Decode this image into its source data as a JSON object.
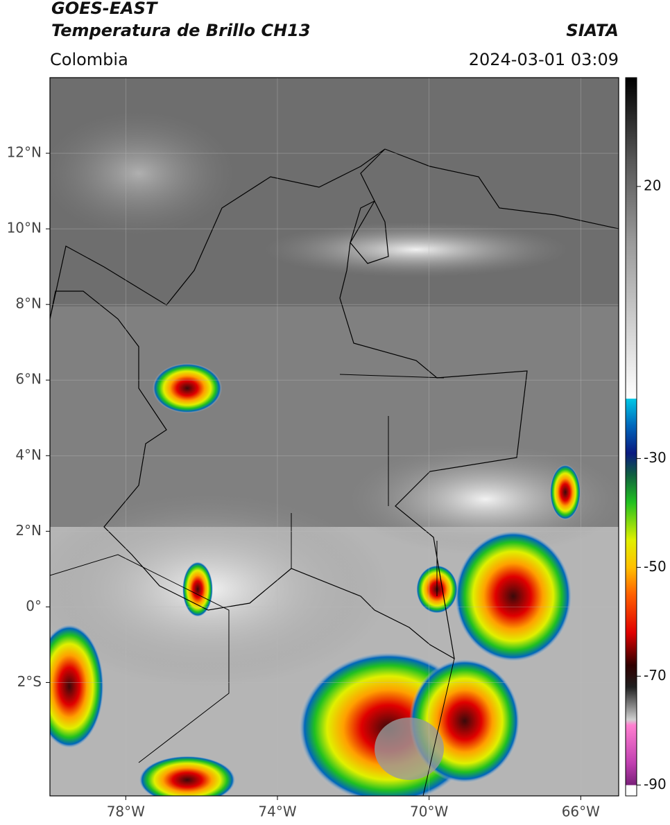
{
  "map": {
    "satellite": "GOES-EAST",
    "product": "Temperatura de Brillo CH13",
    "source": "SIATA",
    "region": "Colombia",
    "datetime": "2024-03-01 03:09",
    "xlim": [
      -80,
      -65
    ],
    "ylim": [
      -5,
      14
    ],
    "xticks": [
      {
        "value": -78,
        "label": "78°W"
      },
      {
        "value": -74,
        "label": "74°W"
      },
      {
        "value": -70,
        "label": "70°W"
      },
      {
        "value": -66,
        "label": "66°W"
      }
    ],
    "yticks": [
      {
        "value": 12,
        "label": "12°N"
      },
      {
        "value": 10,
        "label": "10°N"
      },
      {
        "value": 8,
        "label": "8°N"
      },
      {
        "value": 6,
        "label": "6°N"
      },
      {
        "value": 4,
        "label": "4°N"
      },
      {
        "value": 2,
        "label": "2°N"
      },
      {
        "value": 0,
        "label": "0°"
      },
      {
        "value": -2,
        "label": "2°S"
      }
    ],
    "grid": true,
    "colorbar": {
      "clim": [
        -92,
        40
      ],
      "ticks": [
        20,
        -30,
        -50,
        -70,
        -90
      ],
      "stops": [
        [
          40,
          "#000000"
        ],
        [
          25,
          "#555555"
        ],
        [
          10,
          "#999999"
        ],
        [
          -10,
          "#e0e0e0"
        ],
        [
          -19,
          "#ffffff"
        ],
        [
          -19,
          "#00c8e6"
        ],
        [
          -24,
          "#0066bb"
        ],
        [
          -29,
          "#0a1a80"
        ],
        [
          -33,
          "#105f40"
        ],
        [
          -38,
          "#20c020"
        ],
        [
          -45,
          "#e0f000"
        ],
        [
          -50,
          "#ffc000"
        ],
        [
          -55,
          "#ff6000"
        ],
        [
          -62,
          "#e00000"
        ],
        [
          -68,
          "#300000"
        ],
        [
          -72,
          "#202020"
        ],
        [
          -78,
          "#d0d0d0"
        ],
        [
          -79,
          "#ff80d0"
        ],
        [
          -86,
          "#c040b0"
        ],
        [
          -90,
          "#7a207a"
        ],
        [
          -90,
          "#ffffff"
        ],
        [
          -92,
          "#ffffff"
        ]
      ]
    }
  }
}
